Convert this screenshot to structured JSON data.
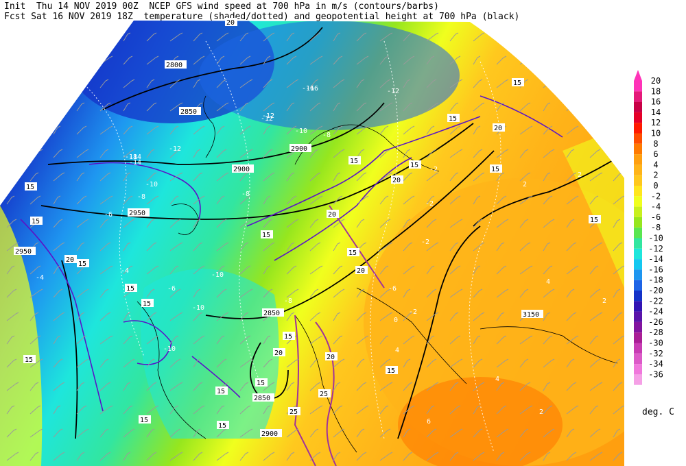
{
  "header": {
    "init_line": "Init  Thu 14 NOV 2019 00Z  NCEP GFS wind speed at 700 hPa in m/s (contours/barbs)",
    "fcst_line": "Fcst Sat 16 NOV 2019 18Z  temperature (shaded/dotted) and geopotential height at 700 hPa (black)"
  },
  "legend": {
    "units": "deg. C",
    "levels": [
      "20",
      "18",
      "16",
      "14",
      "12",
      "10",
      "8",
      "6",
      "4",
      "2",
      "0",
      "-2",
      "-4",
      "-6",
      "-8",
      "-10",
      "-12",
      "-14",
      "-16",
      "-18",
      "-20",
      "-22",
      "-24",
      "-26",
      "-28",
      "-30",
      "-32",
      "-34",
      "-36"
    ],
    "colors": [
      "#ff33b8",
      "#e5197a",
      "#c80046",
      "#e50028",
      "#ff1a00",
      "#ff4d00",
      "#ff7a00",
      "#ff9f0f",
      "#ffb419",
      "#ffc81e",
      "#ffe61e",
      "#f0ff1e",
      "#c8f01e",
      "#96e61e",
      "#5ae650",
      "#32e6a0",
      "#1ee6dc",
      "#14c8f0",
      "#1e96f0",
      "#1e64e6",
      "#1432c8",
      "#3214b4",
      "#5a14aa",
      "#8214a0",
      "#aa1e96",
      "#c83cb4",
      "#dc5ac8",
      "#f078dc",
      "#f5a0e6"
    ]
  },
  "map_labels": {
    "heights": [
      "2800",
      "2850",
      "2900",
      "2900",
      "2950",
      "2850",
      "2950",
      "2850",
      "2900",
      "3150"
    ],
    "temps": [
      "-14",
      "-12",
      "-10",
      "-12",
      "-12",
      "-10",
      "-8",
      "-18",
      "-14",
      "-16",
      "-4",
      "-10",
      "-6",
      "-6",
      "-8",
      "-10",
      "-8",
      "-10",
      "-8",
      "-6",
      "-2",
      "-2",
      "-2",
      "-2",
      "0",
      "2",
      "2",
      "4",
      "4",
      "4",
      "2",
      "2",
      "6",
      "-16",
      "-12",
      "-4"
    ],
    "winds": [
      "15",
      "15",
      "15",
      "15",
      "20",
      "20",
      "15",
      "15",
      "15",
      "15",
      "15",
      "20",
      "15",
      "15",
      "20",
      "15",
      "15",
      "15",
      "20",
      "15",
      "20",
      "15",
      "20",
      "25",
      "15",
      "25",
      "15",
      "20",
      "15",
      "15"
    ]
  },
  "colors": {
    "height_contour": "#000000",
    "wind_contour": "#5a14c8",
    "wind_strong": "#a0329a",
    "coastline": "#000000"
  }
}
